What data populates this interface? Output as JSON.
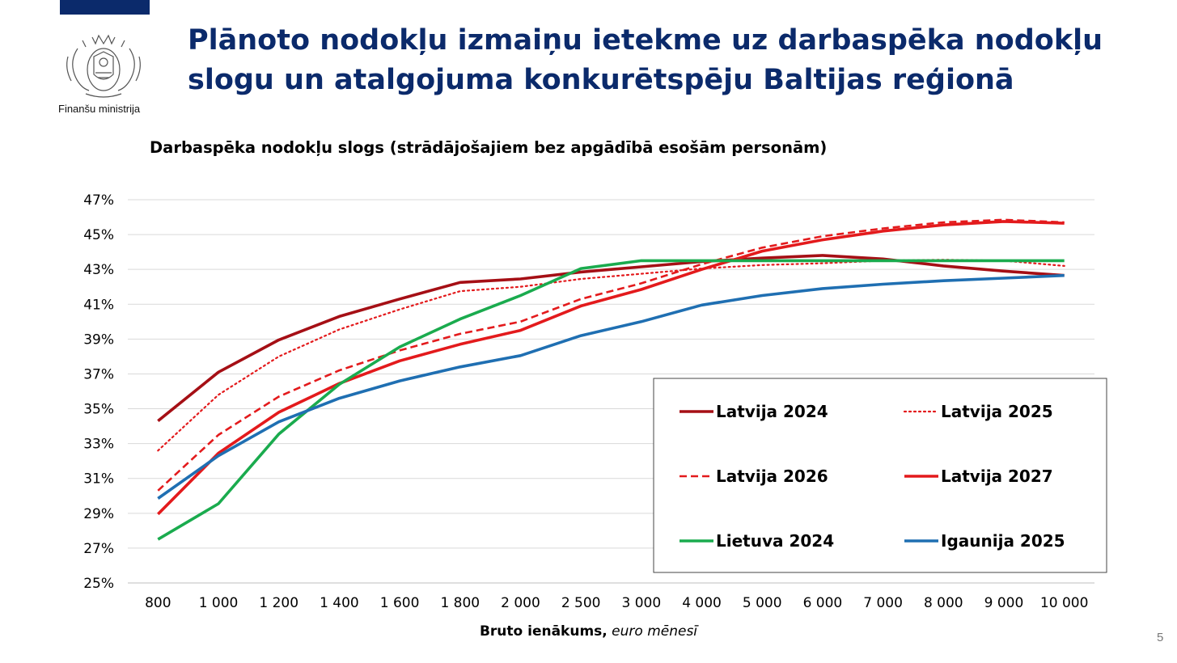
{
  "header": {
    "title_line1": "Plānoto nodokļu izmaiņu ietekme uz darbaspēka nodokļu",
    "title_line2": "slogu un atalgojuma konkurētspēju Baltijas reģionā",
    "ministry": "Finanšu ministrija",
    "brand_color": "#0b2a6b"
  },
  "footer": {
    "page_number": "5"
  },
  "chart_data": {
    "type": "line",
    "title": "Darbaspēka nodokļu slogs (strādājošajiem bez apgādībā esošām personām)",
    "xlabel": "Bruto ienākums,",
    "xlabel_unit": "euro mēnesī",
    "ylabel": "",
    "ylim": [
      25,
      47
    ],
    "yticks": [
      25,
      27,
      29,
      31,
      33,
      35,
      37,
      39,
      41,
      43,
      45,
      47
    ],
    "ytick_labels": [
      "25%",
      "27%",
      "29%",
      "31%",
      "33%",
      "35%",
      "37%",
      "39%",
      "41%",
      "43%",
      "45%",
      "47%"
    ],
    "grid": true,
    "legend_position": "bottom-right",
    "categories": [
      "800",
      "1 000",
      "1 200",
      "1 400",
      "1 600",
      "1 800",
      "2 000",
      "2 500",
      "3 000",
      "4 000",
      "5 000",
      "6 000",
      "7 000",
      "8 000",
      "9 000",
      "10 000"
    ],
    "series": [
      {
        "name": "Latvija 2024",
        "color": "#a50f15",
        "style": "solid",
        "values": [
          34.3,
          37.1,
          38.95,
          40.3,
          41.3,
          42.25,
          42.45,
          42.85,
          43.15,
          43.45,
          43.65,
          43.8,
          43.6,
          43.2,
          42.9,
          42.65
        ]
      },
      {
        "name": "Latvija 2025",
        "color": "#e31a1c",
        "style": "dotted",
        "values": [
          32.6,
          35.8,
          38.0,
          39.55,
          40.7,
          41.75,
          42.0,
          42.45,
          42.75,
          43.05,
          43.25,
          43.35,
          43.5,
          43.55,
          43.5,
          43.2
        ]
      },
      {
        "name": "Latvija 2026",
        "color": "#e31a1c",
        "style": "dashed",
        "values": [
          30.3,
          33.5,
          35.7,
          37.2,
          38.35,
          39.3,
          40.0,
          41.3,
          42.2,
          43.3,
          44.25,
          44.9,
          45.35,
          45.7,
          45.85,
          45.7
        ]
      },
      {
        "name": "Latvija 2027",
        "color": "#e31a1c",
        "style": "solid",
        "values": [
          28.95,
          32.45,
          34.8,
          36.45,
          37.75,
          38.7,
          39.5,
          40.9,
          41.85,
          43.0,
          44.05,
          44.7,
          45.2,
          45.55,
          45.75,
          45.65
        ]
      },
      {
        "name": "Lietuva 2024",
        "color": "#1aab4e",
        "style": "solid",
        "values": [
          27.5,
          29.55,
          33.55,
          36.4,
          38.55,
          40.15,
          41.5,
          43.05,
          43.5,
          43.5,
          43.5,
          43.5,
          43.5,
          43.5,
          43.5,
          43.5
        ]
      },
      {
        "name": "Igaunija 2025",
        "color": "#1f6fb2",
        "style": "solid",
        "values": [
          29.85,
          32.3,
          34.25,
          35.6,
          36.6,
          37.4,
          38.05,
          39.2,
          40.0,
          40.95,
          41.5,
          41.9,
          42.15,
          42.35,
          42.5,
          42.65
        ]
      }
    ]
  }
}
